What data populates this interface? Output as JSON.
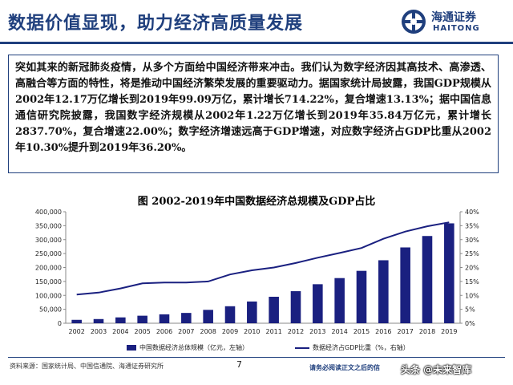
{
  "header": {
    "title": "数据价值显现，助力经济高质量发展",
    "logo_cn": "海通证券",
    "logo_en": "HAITONG"
  },
  "summary": {
    "text": "突如其来的新冠肺炎疫情，从多个方面给中国经济带来冲击。我们认为数字经济因其高技术、高渗透、高融合等方面的特性，将是推动中国经济繁荣发展的重要驱动力。据国家统计局披露，我国GDP规模从2002年12.17万亿增长到2019年99.09万亿，累计增长714.22%，复合增速13.13%；据中国信息通信研究院披露，我国数字经济规模从2002年1.22万亿增长到2019年35.84万亿元，累计增长2837.70%，复合增速22.00%；数字经济增速远高于GDP增速，对应数字经济占GDP比重从2002年10.30%提升到2019年36.20%。"
  },
  "chart_data": {
    "type": "bar",
    "title": "图 2002-2019年中国数据经济总规模及GDP占比",
    "categories": [
      "2002",
      "2003",
      "2004",
      "2005",
      "2006",
      "2007",
      "2008",
      "2009",
      "2010",
      "2011",
      "2012",
      "2013",
      "2014",
      "2015",
      "2016",
      "2017",
      "2018",
      "2019"
    ],
    "series": [
      {
        "name": "中国数据经济总体规模（亿元，左轴）",
        "type": "bar",
        "axis": "left",
        "values": [
          12200,
          15000,
          21000,
          27000,
          32000,
          37000,
          48000,
          61000,
          78000,
          95000,
          115000,
          140000,
          162000,
          188000,
          226000,
          272000,
          313000,
          358400
        ]
      },
      {
        "name": "数据经济占GDP比重（%，右轴）",
        "type": "line",
        "axis": "right",
        "values": [
          10.3,
          11.0,
          12.5,
          14.3,
          14.6,
          14.6,
          15.0,
          17.5,
          19.0,
          20.0,
          21.6,
          23.5,
          25.2,
          27.0,
          30.3,
          32.9,
          34.8,
          36.2
        ]
      }
    ],
    "ylim_left": [
      0,
      400000
    ],
    "yticks_left": [
      "0",
      "50,000",
      "100,000",
      "150,000",
      "200,000",
      "250,000",
      "300,000",
      "350,000",
      "400,000"
    ],
    "ylim_right": [
      0,
      40
    ],
    "yticks_right": [
      "0%",
      "5%",
      "10%",
      "15%",
      "20%",
      "25%",
      "30%",
      "35%",
      "40%"
    ],
    "legend_position": "bottom",
    "grid": false,
    "colors": {
      "bar": "#1a2080",
      "line": "#1a2080"
    }
  },
  "footer": {
    "source": "资料来源：国家统计局、中国信通院、海通证券研究所",
    "page": "7",
    "disclaimer": "请务必阅读正文之后的信",
    "watermark": "头条 @未来智库"
  }
}
